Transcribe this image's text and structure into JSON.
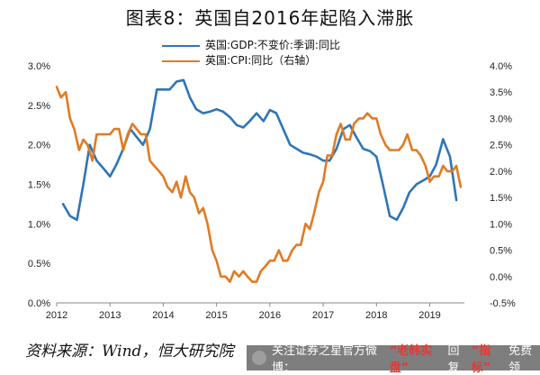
{
  "title": "图表8：英国自2016年起陷入滞胀",
  "source": "资料来源：Wind，恒大研究院",
  "watermark": {
    "text_prefix": "关注证券之星官方微博：",
    "mid1": "老韩实盘",
    "mid2": "回复",
    "mid3": "指标",
    "mid4": "免费领"
  },
  "colors": {
    "gdp": "#2e75b6",
    "cpi": "#e07b23"
  },
  "chart_data": {
    "type": "line",
    "x_ticks": [
      "2012",
      "2013",
      "2014",
      "2015",
      "2016",
      "2017",
      "2018",
      "2019"
    ],
    "xlim": [
      2012.0,
      2019.65
    ],
    "y_left": {
      "ticks": [
        "0.0%",
        "0.5%",
        "1.0%",
        "1.5%",
        "2.0%",
        "2.5%",
        "3.0%"
      ],
      "lim": [
        0.0,
        3.0
      ]
    },
    "y_right": {
      "ticks": [
        "-0.5%",
        "0.0%",
        "0.5%",
        "1.0%",
        "1.5%",
        "2.0%",
        "2.5%",
        "3.0%",
        "3.5%",
        "4.0%"
      ],
      "lim": [
        -0.5,
        4.0
      ]
    },
    "series": [
      {
        "name": "英国:GDP:不变价:季调:同比",
        "axis": "left",
        "points": [
          [
            2012.12,
            1.25
          ],
          [
            2012.25,
            1.1
          ],
          [
            2012.38,
            1.05
          ],
          [
            2012.5,
            1.5
          ],
          [
            2012.62,
            2.0
          ],
          [
            2012.75,
            1.8
          ],
          [
            2012.88,
            1.7
          ],
          [
            2013.0,
            1.6
          ],
          [
            2013.12,
            1.75
          ],
          [
            2013.25,
            1.95
          ],
          [
            2013.38,
            2.2
          ],
          [
            2013.5,
            2.1
          ],
          [
            2013.62,
            2.0
          ],
          [
            2013.75,
            2.2
          ],
          [
            2013.88,
            2.7
          ],
          [
            2014.0,
            2.7
          ],
          [
            2014.12,
            2.7
          ],
          [
            2014.25,
            2.8
          ],
          [
            2014.38,
            2.82
          ],
          [
            2014.5,
            2.6
          ],
          [
            2014.62,
            2.45
          ],
          [
            2014.75,
            2.4
          ],
          [
            2014.88,
            2.42
          ],
          [
            2015.0,
            2.45
          ],
          [
            2015.12,
            2.42
          ],
          [
            2015.25,
            2.35
          ],
          [
            2015.38,
            2.25
          ],
          [
            2015.5,
            2.22
          ],
          [
            2015.62,
            2.3
          ],
          [
            2015.75,
            2.4
          ],
          [
            2015.88,
            2.3
          ],
          [
            2016.0,
            2.44
          ],
          [
            2016.12,
            2.4
          ],
          [
            2016.25,
            2.2
          ],
          [
            2016.38,
            2.0
          ],
          [
            2016.5,
            1.95
          ],
          [
            2016.62,
            1.9
          ],
          [
            2016.75,
            1.88
          ],
          [
            2016.88,
            1.85
          ],
          [
            2017.0,
            1.8
          ],
          [
            2017.12,
            1.8
          ],
          [
            2017.25,
            1.95
          ],
          [
            2017.38,
            2.2
          ],
          [
            2017.5,
            2.25
          ],
          [
            2017.62,
            2.1
          ],
          [
            2017.75,
            1.95
          ],
          [
            2017.88,
            1.92
          ],
          [
            2018.0,
            1.85
          ],
          [
            2018.12,
            1.5
          ],
          [
            2018.25,
            1.1
          ],
          [
            2018.38,
            1.05
          ],
          [
            2018.5,
            1.2
          ],
          [
            2018.62,
            1.4
          ],
          [
            2018.75,
            1.5
          ],
          [
            2018.88,
            1.55
          ],
          [
            2019.0,
            1.6
          ],
          [
            2019.12,
            1.75
          ],
          [
            2019.25,
            2.07
          ],
          [
            2019.38,
            1.85
          ],
          [
            2019.5,
            1.3
          ]
        ]
      },
      {
        "name": "英国:CPI:同比（右轴）",
        "axis": "right",
        "points": [
          [
            2012.0,
            3.6
          ],
          [
            2012.08,
            3.4
          ],
          [
            2012.17,
            3.5
          ],
          [
            2012.25,
            3.0
          ],
          [
            2012.33,
            2.8
          ],
          [
            2012.42,
            2.4
          ],
          [
            2012.5,
            2.6
          ],
          [
            2012.58,
            2.5
          ],
          [
            2012.67,
            2.2
          ],
          [
            2012.75,
            2.7
          ],
          [
            2012.83,
            2.7
          ],
          [
            2012.92,
            2.7
          ],
          [
            2013.0,
            2.7
          ],
          [
            2013.08,
            2.8
          ],
          [
            2013.17,
            2.8
          ],
          [
            2013.25,
            2.4
          ],
          [
            2013.33,
            2.7
          ],
          [
            2013.42,
            2.9
          ],
          [
            2013.5,
            2.8
          ],
          [
            2013.58,
            2.7
          ],
          [
            2013.67,
            2.7
          ],
          [
            2013.75,
            2.2
          ],
          [
            2013.83,
            2.1
          ],
          [
            2013.92,
            2.0
          ],
          [
            2014.0,
            1.9
          ],
          [
            2014.08,
            1.7
          ],
          [
            2014.17,
            1.6
          ],
          [
            2014.25,
            1.8
          ],
          [
            2014.33,
            1.5
          ],
          [
            2014.42,
            1.9
          ],
          [
            2014.5,
            1.6
          ],
          [
            2014.58,
            1.5
          ],
          [
            2014.67,
            1.2
          ],
          [
            2014.75,
            1.3
          ],
          [
            2014.83,
            1.0
          ],
          [
            2014.92,
            0.5
          ],
          [
            2015.0,
            0.3
          ],
          [
            2015.08,
            0.0
          ],
          [
            2015.17,
            0.0
          ],
          [
            2015.25,
            -0.1
          ],
          [
            2015.33,
            0.1
          ],
          [
            2015.42,
            0.0
          ],
          [
            2015.5,
            0.1
          ],
          [
            2015.58,
            0.0
          ],
          [
            2015.67,
            -0.1
          ],
          [
            2015.75,
            -0.1
          ],
          [
            2015.83,
            0.1
          ],
          [
            2015.92,
            0.2
          ],
          [
            2016.0,
            0.3
          ],
          [
            2016.08,
            0.3
          ],
          [
            2016.17,
            0.5
          ],
          [
            2016.25,
            0.3
          ],
          [
            2016.33,
            0.3
          ],
          [
            2016.42,
            0.5
          ],
          [
            2016.5,
            0.6
          ],
          [
            2016.58,
            0.6
          ],
          [
            2016.67,
            1.0
          ],
          [
            2016.75,
            0.9
          ],
          [
            2016.83,
            1.2
          ],
          [
            2016.92,
            1.6
          ],
          [
            2017.0,
            1.8
          ],
          [
            2017.08,
            2.3
          ],
          [
            2017.17,
            2.3
          ],
          [
            2017.25,
            2.7
          ],
          [
            2017.33,
            2.9
          ],
          [
            2017.42,
            2.6
          ],
          [
            2017.5,
            2.6
          ],
          [
            2017.58,
            2.9
          ],
          [
            2017.67,
            3.0
          ],
          [
            2017.75,
            3.0
          ],
          [
            2017.83,
            3.1
          ],
          [
            2017.92,
            3.0
          ],
          [
            2018.0,
            3.0
          ],
          [
            2018.08,
            2.7
          ],
          [
            2018.17,
            2.5
          ],
          [
            2018.25,
            2.4
          ],
          [
            2018.33,
            2.4
          ],
          [
            2018.42,
            2.4
          ],
          [
            2018.5,
            2.5
          ],
          [
            2018.58,
            2.7
          ],
          [
            2018.67,
            2.4
          ],
          [
            2018.75,
            2.4
          ],
          [
            2018.83,
            2.3
          ],
          [
            2018.92,
            2.1
          ],
          [
            2019.0,
            1.8
          ],
          [
            2019.08,
            1.9
          ],
          [
            2019.17,
            1.9
          ],
          [
            2019.25,
            2.1
          ],
          [
            2019.33,
            2.0
          ],
          [
            2019.42,
            2.0
          ],
          [
            2019.5,
            2.1
          ],
          [
            2019.58,
            1.7
          ]
        ]
      }
    ]
  }
}
